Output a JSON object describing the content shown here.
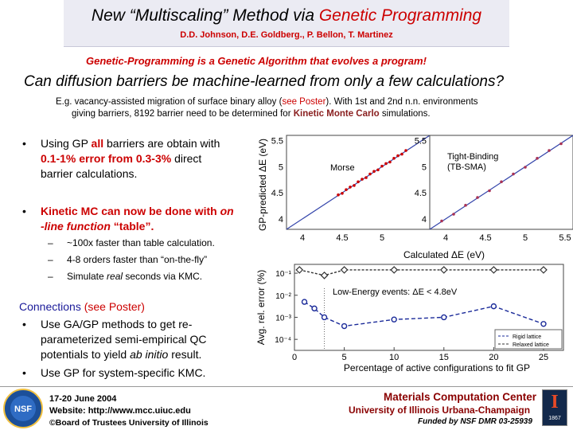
{
  "header": {
    "title_part1": "New “Multiscaling” Method via ",
    "title_part2": "Genetic Programming",
    "authors": "D.D. Johnson, D.E. Goldberg., P. Bellon, T. Martinez"
  },
  "gp_definition": "Genetic-Programming is a Genetic Algorithm that evolves a program!",
  "question": "Can diffusion barriers be machine-learned from only a few calculations?",
  "intro": {
    "line1_a": "E.g. vacancy-assisted migration of surface binary alloy (",
    "line1_link": "see Poster",
    "line1_b": "). With 1st and 2nd n.n. environments",
    "line2_a": "giving barriers, 8192 barrier need to be determined for ",
    "line2_kmc": "Kinetic Monte Carlo",
    "line2_b": " simulations."
  },
  "bullets": {
    "b1_l1_a": "Using GP ",
    "b1_l1_all": "all",
    "b1_l1_b": " barriers are obtain with",
    "b1_l2_err": "0.1-1% error from 0.3-3%",
    "b1_l2_b": " direct",
    "b1_l3": "barrier calculations.",
    "b2_l1_a": "Kinetic MC can now be done with ",
    "b2_l1_on": "on",
    "b2_l2_line": "-line function",
    "b2_l2_table": " “table”.",
    "sub1": "~100x faster than table calculation.",
    "sub2": "4-8 orders faster than “on-the-fly”",
    "sub3_a": "Simulate ",
    "sub3_real": "real",
    "sub3_b": " seconds via KMC."
  },
  "connections": {
    "title_a": "Connections  ",
    "title_b": "(see Poster)",
    "c1_l1": "Use GA/GP methods to get re-",
    "c1_l2": "parameterized semi-empirical QC",
    "c1_l3_a": "potentials to yield ",
    "c1_l3_ab": "ab initio",
    "c1_l3_b": " result.",
    "c2": "Use GP for system-specific KMC."
  },
  "chart_data": [
    {
      "type": "scatter",
      "title": "",
      "xlabel": "Calculated ΔE (eV)",
      "ylabel": "GP-predicted ΔE (eV)",
      "panels": [
        {
          "label": "Morse",
          "xlim": [
            3.8,
            5.6
          ],
          "ylim": [
            3.8,
            5.6
          ],
          "x_ticks": [
            4,
            4.5,
            5
          ],
          "y_ticks": [
            4,
            4.5,
            5,
            5.5
          ],
          "x": [
            4.45,
            4.5,
            4.55,
            4.6,
            4.65,
            4.7,
            4.75,
            4.8,
            4.85,
            4.9,
            4.95,
            5.0,
            5.05,
            5.1,
            5.15,
            5.2,
            5.25,
            5.3
          ],
          "y": [
            4.46,
            4.49,
            4.56,
            4.61,
            4.64,
            4.71,
            4.76,
            4.79,
            4.86,
            4.91,
            4.94,
            5.01,
            5.06,
            5.09,
            5.16,
            5.21,
            5.24,
            5.31
          ]
        },
        {
          "label_l1": "Tight-Binding",
          "label_l2": "(TB-SMA)",
          "xlim": [
            3.8,
            5.6
          ],
          "ylim": [
            3.8,
            5.6
          ],
          "x_ticks": [
            4,
            4.5,
            5,
            5.5
          ],
          "y_ticks": [
            4,
            4.5,
            5,
            5.5
          ],
          "x": [
            3.95,
            4.1,
            4.25,
            4.4,
            4.55,
            4.7,
            4.85,
            5.0,
            5.15,
            5.3,
            5.45
          ],
          "y": [
            3.96,
            4.09,
            4.26,
            4.41,
            4.54,
            4.71,
            4.86,
            4.99,
            5.16,
            5.31,
            5.44
          ]
        }
      ]
    },
    {
      "type": "line",
      "title": "",
      "xlabel": "Percentage of active configurations to fit GP",
      "ylabel": "Avg. rel. error (%)",
      "annotation": "Low-Energy events: ΔE < 4.8eV",
      "x_ticks": [
        0,
        5,
        10,
        15,
        20,
        25
      ],
      "y_ticks": [
        "10⁻⁴",
        "10⁻³",
        "10⁻²",
        "10⁻¹"
      ],
      "xlim": [
        0,
        27
      ],
      "ylim_log10": [
        -4.5,
        -0.6
      ],
      "series": [
        {
          "name": "Rigid lattice",
          "color": "#1a2a99",
          "x": [
            1,
            2,
            3,
            5,
            10,
            15,
            20,
            25
          ],
          "y_log10": [
            -2.3,
            -2.6,
            -3.0,
            -3.4,
            -3.1,
            -3.0,
            -2.5,
            -3.3
          ]
        },
        {
          "name": "Relaxed lattice",
          "color": "#333333",
          "x": [
            0.5,
            3,
            5,
            10,
            15,
            20,
            25
          ],
          "y_log10": [
            -0.85,
            -1.1,
            -0.85,
            -0.85,
            -0.85,
            -0.85,
            -0.85
          ]
        }
      ]
    }
  ],
  "footer": {
    "date": "17-20 June 2004",
    "website": "Website:  http://www.mcc.uiuc.edu",
    "copyright": "©Board of Trustees University of Illinois",
    "mcc": "Materials Computation Center",
    "uiuc": "University of Illinois Urbana-Champaign",
    "funding": "Funded by NSF DMR 03-25939",
    "nsf_logo_text": "NSF",
    "ui_logo_text": "I",
    "ui_logo_year": "1867"
  },
  "colors": {
    "accent_red": "#cc0000",
    "connections_blue": "#1a1a99",
    "title_band": "#ebebf3"
  }
}
